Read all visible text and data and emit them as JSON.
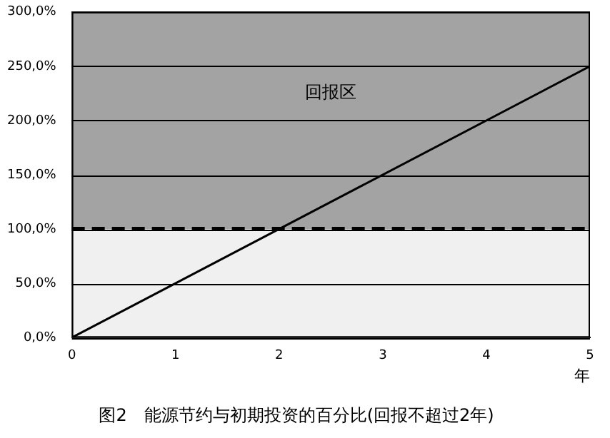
{
  "chart_data": {
    "type": "line",
    "title": "图2　能源节约与初期投资的百分比(回报不超过2年)",
    "xlabel": "年",
    "x": [
      0,
      5
    ],
    "series": [
      {
        "color": "#000000",
        "values": [
          0,
          250
        ]
      }
    ],
    "xlim": [
      0,
      5
    ],
    "xticks": [
      0,
      1,
      2,
      3,
      4,
      5
    ],
    "ylim": [
      0,
      300
    ],
    "yticks": [
      {
        "value": 0,
        "label": "0,0%"
      },
      {
        "value": 50,
        "label": "50,0%"
      },
      {
        "value": 100,
        "label": "100,0%"
      },
      {
        "value": 150,
        "label": "150,0%"
      },
      {
        "value": 200,
        "label": "200,0%"
      },
      {
        "value": 250,
        "label": "250,0%"
      },
      {
        "value": 300,
        "label": "300,0%"
      }
    ],
    "grid": "y",
    "legend": false,
    "marker": "none",
    "line_style": "solid",
    "bands": [
      {
        "axis": "y",
        "from": 100,
        "to": 300,
        "label": "回报区",
        "color": "#a3a3a3"
      },
      {
        "axis": "y",
        "from": 0,
        "to": 100,
        "color": "#f0f0f0"
      }
    ],
    "ref_lines": [
      {
        "axis": "y",
        "value": 100,
        "color": "#000000",
        "line_style": "dashed"
      }
    ]
  }
}
